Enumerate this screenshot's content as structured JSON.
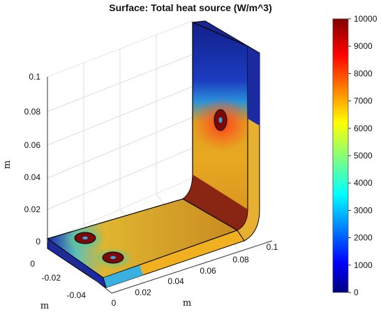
{
  "chart_data": {
    "type": "heatmap",
    "title": "Surface: Total heat source (W/m^3)",
    "z_axis": {
      "label": "m",
      "ticks": [
        "0",
        "0.02",
        "0.04",
        "0.06",
        "0.08",
        "0.1"
      ]
    },
    "x_axis": {
      "label": "m",
      "ticks": [
        "0",
        "0.02",
        "0.04",
        "0.06",
        "0.08",
        "0.1"
      ]
    },
    "y_axis": {
      "label": "m",
      "ticks": [
        "0",
        "-0.02",
        "-0.04"
      ]
    },
    "colorbar": {
      "min": 0,
      "max": 10000,
      "ticks": [
        "0",
        "1000",
        "2000",
        "3000",
        "4000",
        "5000",
        "6000",
        "7000",
        "8000",
        "9000",
        "10000"
      ],
      "colormap": "jet",
      "colors": [
        "#00007f",
        "#0000ff",
        "#00ffff",
        "#ffff00",
        "#ff0000",
        "#7f0000"
      ]
    },
    "grid": true
  }
}
